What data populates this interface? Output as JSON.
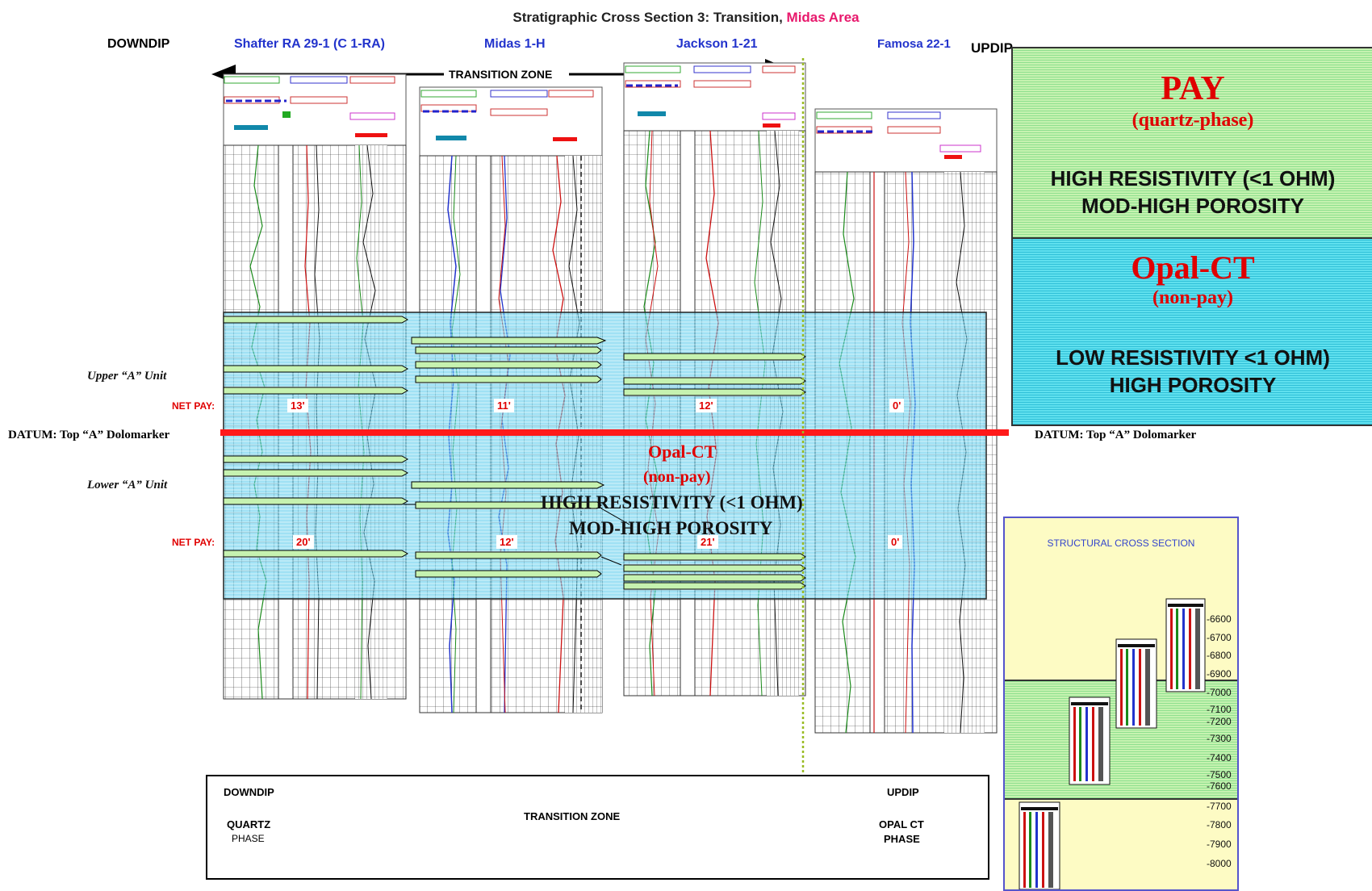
{
  "title": {
    "main": "Stratigraphic Cross Section 3: Transition,",
    "highlight": "Midas Area"
  },
  "labels": {
    "downdip": "DOWNDIP",
    "updip": "UPDIP",
    "transition_zone": "TRANSITION ZONE",
    "upper_unit": "Upper “A” Unit",
    "lower_unit": "Lower “A” Unit",
    "net_pay": "NET PAY:",
    "datum_left": "DATUM:  Top “A” Dolomarker",
    "datum_right": "DATUM:  Top “A” Dolomarker"
  },
  "wells": [
    {
      "name": "Shafter RA 29-1 (C 1-RA)",
      "upper_pay": "13'",
      "lower_pay": "20'"
    },
    {
      "name": "Midas 1-H",
      "upper_pay": "11'",
      "lower_pay": "12'"
    },
    {
      "name": "Jackson 1-21",
      "upper_pay": "12'",
      "lower_pay": "21'"
    },
    {
      "name": "Famosa 22-1",
      "upper_pay": "0'",
      "lower_pay": "0'"
    }
  ],
  "overlay": {
    "opal": "Opal-CT",
    "nonpay": "(non-pay)",
    "line1": "HIGH RESISTIVITY (<1 OHM)",
    "line2": "MOD-HIGH POROSITY"
  },
  "legend": {
    "pay": {
      "title": "PAY",
      "subtitle": "(quartz-phase)",
      "line1": "HIGH RESISTIVITY (<1 OHM)",
      "line2": "MOD-HIGH POROSITY"
    },
    "opal": {
      "title": "Opal-CT",
      "subtitle": "(non-pay)",
      "line1": "LOW RESISTIVITY <1 OHM)",
      "line2": "HIGH POROSITY"
    }
  },
  "structural": {
    "title": "STRUCTURAL  CROSS SECTION",
    "depths": [
      "-6600",
      "-6700",
      "-6800",
      "-6900",
      "-7000",
      "-7100",
      "-7200",
      "-7300",
      "-7400",
      "-7500",
      "-7600",
      "-7700",
      "-7800",
      "-7900",
      "-8000"
    ]
  },
  "bottom_box": {
    "downdip": "DOWNDIP",
    "quartz": "QUARTZ",
    "phase": "PHASE",
    "transition": "TRANSITION ZONE",
    "updip": "UPDIP",
    "opal_ct": "OPAL CT",
    "opal_phase": "PHASE"
  },
  "colors": {
    "pay_green": "#c6f2b0",
    "opal_cyan": "#5fe0ee",
    "datum_red": "#ff1a1a",
    "well_blue": "#2233cc"
  }
}
